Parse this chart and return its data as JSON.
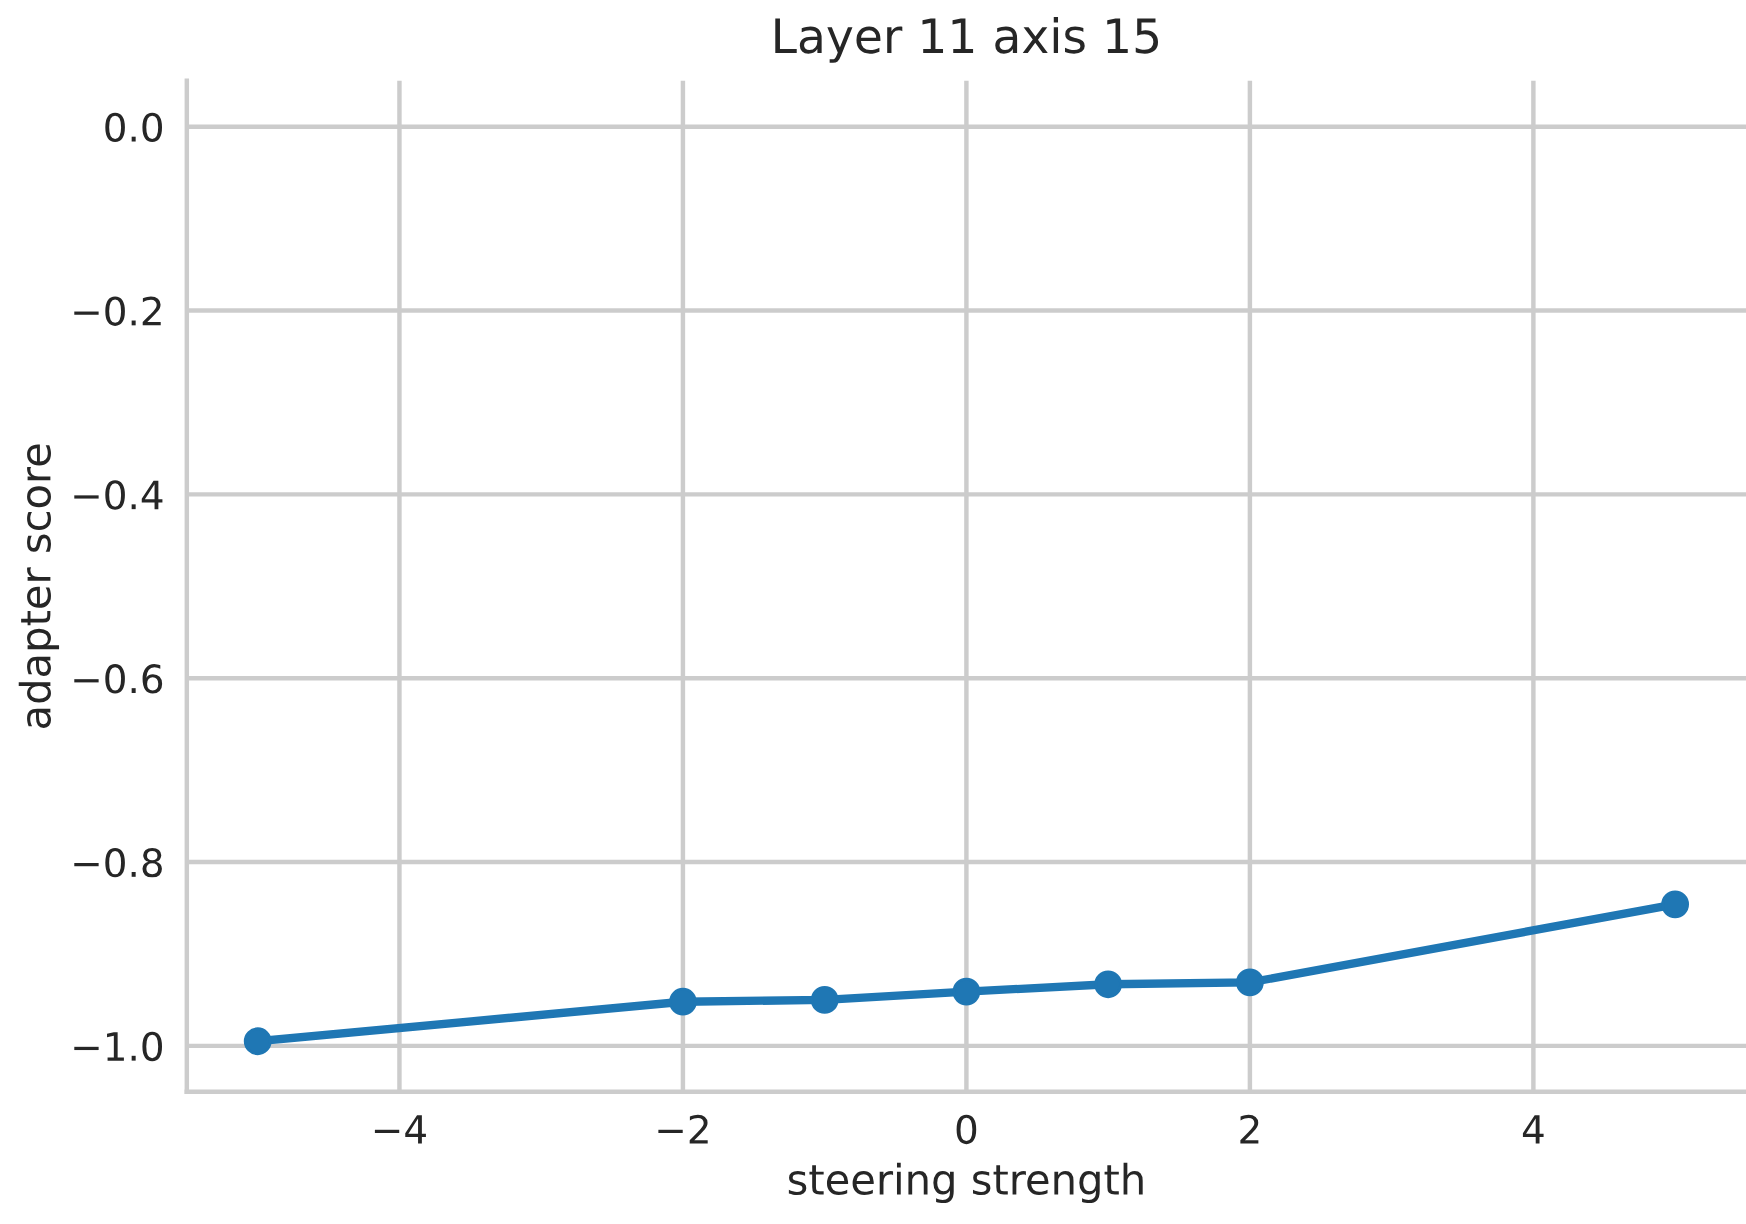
{
  "chart_data": {
    "type": "line",
    "title": "Layer 11 axis 15",
    "xlabel": "steering strength",
    "ylabel": "adapter score",
    "x": [
      -5,
      -2,
      -1,
      0,
      1,
      2,
      5
    ],
    "series": [
      {
        "color": "#1f77b4",
        "values": [
          -0.995,
          -0.952,
          -0.95,
          -0.941,
          -0.933,
          -0.931,
          -0.846
        ]
      }
    ],
    "xlim": [
      -5.5,
      5.5
    ],
    "ylim": [
      -1.05,
      0.05
    ],
    "xticks": [
      {
        "value": -4,
        "label": "−4"
      },
      {
        "value": -2,
        "label": "−2"
      },
      0,
      2,
      4
    ],
    "yticks": [
      {
        "value": -1.0,
        "label": "−1.0"
      },
      {
        "value": -0.8,
        "label": "−0.8"
      },
      {
        "value": -0.6,
        "label": "−0.6"
      },
      {
        "value": -0.4,
        "label": "−0.4"
      },
      {
        "value": -0.2,
        "label": "−0.2"
      },
      {
        "value": 0.0,
        "label": "0.0"
      }
    ],
    "grid": true,
    "marker": "circle",
    "line_style": "solid"
  }
}
